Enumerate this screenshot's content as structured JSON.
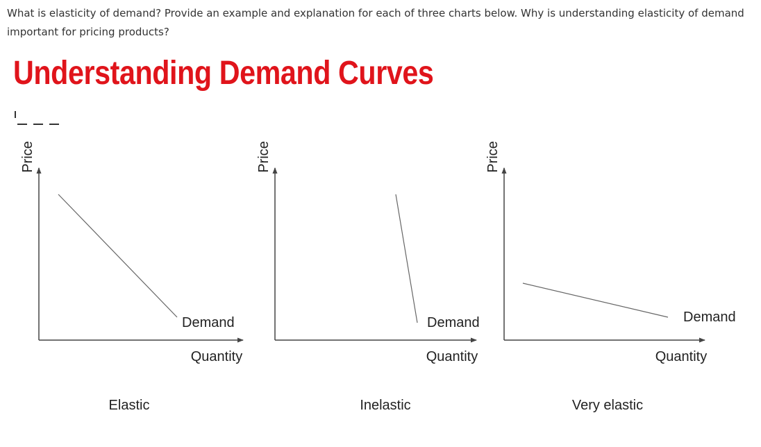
{
  "question": "What is elasticity of demand? Provide an example and explanation for each of three charts below. Why is understanding elasticity of demand important for pricing products?",
  "title": "Understanding Demand Curves",
  "colors": {
    "title": "#e0141b",
    "axis": "#444444",
    "curve": "#666666",
    "text": "#222222"
  },
  "charts": [
    {
      "y_axis_label": "Price",
      "x_axis_label": "Quantity",
      "curve_label": "Demand",
      "caption": "Elastic"
    },
    {
      "y_axis_label": "Price",
      "x_axis_label": "Quantity",
      "curve_label": "Demand",
      "caption": "Inelastic"
    },
    {
      "y_axis_label": "Price",
      "x_axis_label": "Quantity",
      "curve_label": "Demand",
      "caption": "Very elastic"
    }
  ]
}
